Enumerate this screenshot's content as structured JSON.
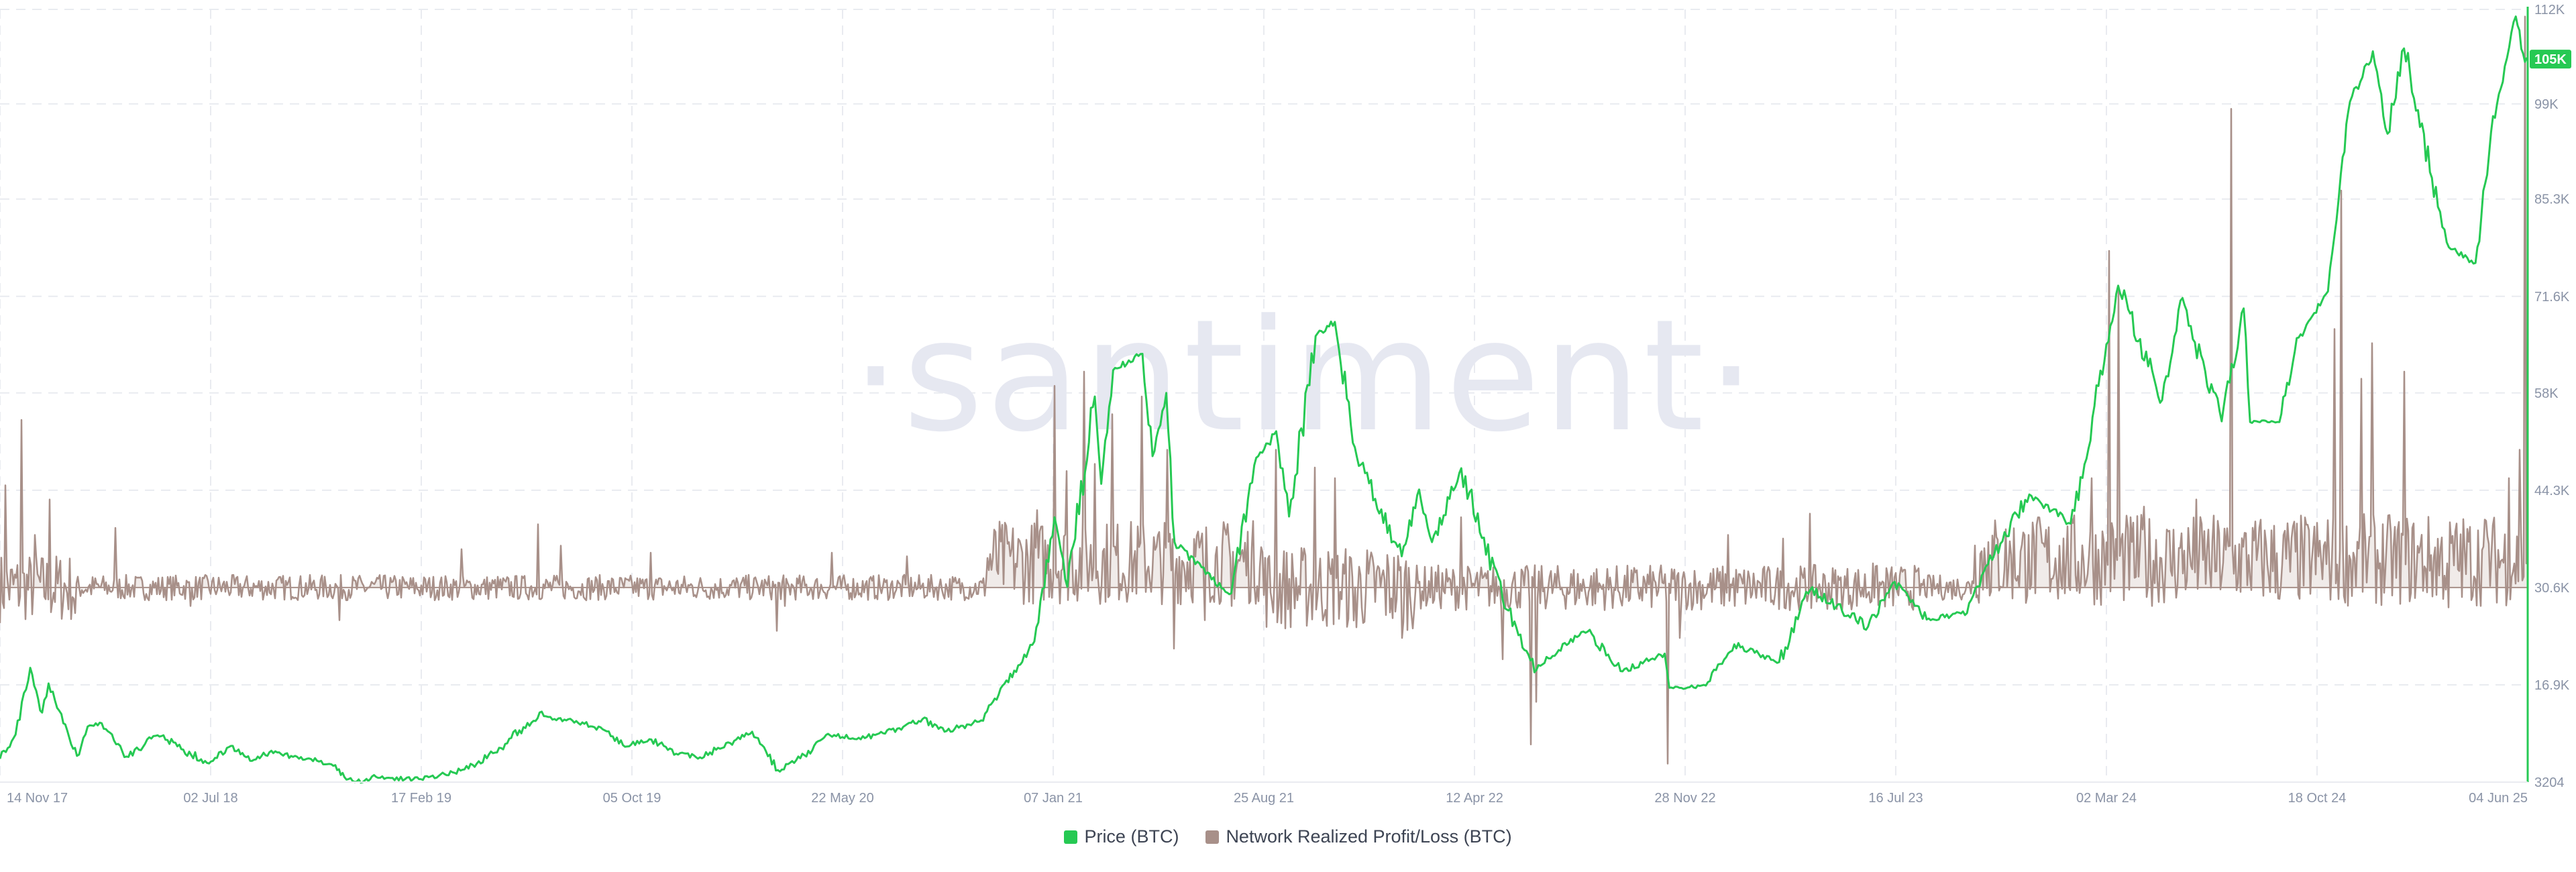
{
  "watermark": "·santiment·",
  "colors": {
    "price": "#26c953",
    "profit_loss": "#a89089",
    "profit_loss_fill": "#f0ebe9",
    "grid": "#e9ebf0",
    "axis_text": "#8a93a6",
    "badge_bg": "#26c953"
  },
  "chart_data": {
    "type": "line",
    "x_labels": [
      "14 Nov 17",
      "02 Jul 18",
      "17 Feb 19",
      "05 Oct 19",
      "22 May 20",
      "07 Jan 21",
      "25 Aug 21",
      "12 Apr 22",
      "28 Nov 22",
      "16 Jul 23",
      "02 Mar 24",
      "18 Oct 24",
      "04 Jun 25"
    ],
    "x_range": [
      "2017-11-14",
      "2025-06-04"
    ],
    "y_ticks": [
      "112K",
      "99K",
      "85.3K",
      "71.6K",
      "58K",
      "44.3K",
      "30.6K",
      "16.9K",
      "3204"
    ],
    "y_range": [
      3204,
      112000
    ],
    "y_tick_values": [
      112000,
      98700,
      85300,
      71600,
      58000,
      44300,
      30600,
      16900,
      3204
    ],
    "grid": true,
    "legend_position": "bottom-center",
    "current_value_badge": "105K",
    "series": [
      {
        "name": "Price (BTC)",
        "color": "#26c953",
        "points": [
          [
            "2017-11-14",
            6500
          ],
          [
            "2017-12-01",
            9900
          ],
          [
            "2017-12-17",
            19300
          ],
          [
            "2017-12-30",
            13000
          ],
          [
            "2018-01-06",
            17100
          ],
          [
            "2018-01-20",
            12800
          ],
          [
            "2018-02-06",
            6900
          ],
          [
            "2018-02-20",
            11200
          ],
          [
            "2018-03-05",
            11500
          ],
          [
            "2018-04-01",
            6800
          ],
          [
            "2018-05-05",
            9800
          ],
          [
            "2018-06-28",
            5900
          ],
          [
            "2018-07-24",
            8300
          ],
          [
            "2018-08-14",
            6200
          ],
          [
            "2018-09-04",
            7400
          ],
          [
            "2018-10-15",
            6500
          ],
          [
            "2018-11-15",
            5600
          ],
          [
            "2018-11-25",
            3900
          ],
          [
            "2018-12-15",
            3200
          ],
          [
            "2018-12-25",
            4000
          ],
          [
            "2019-02-08",
            3600
          ],
          [
            "2019-02-25",
            3900
          ],
          [
            "2019-04-05",
            5000
          ],
          [
            "2019-05-15",
            8000
          ],
          [
            "2019-06-26",
            13000
          ],
          [
            "2019-07-10",
            12000
          ],
          [
            "2019-08-05",
            11800
          ],
          [
            "2019-09-05",
            10500
          ],
          [
            "2019-09-25",
            8400
          ],
          [
            "2019-10-26",
            9200
          ],
          [
            "2019-11-22",
            7200
          ],
          [
            "2019-12-18",
            6700
          ],
          [
            "2020-01-20",
            8700
          ],
          [
            "2020-02-13",
            10300
          ],
          [
            "2020-03-12",
            4900
          ],
          [
            "2020-04-10",
            7000
          ],
          [
            "2020-05-08",
            9800
          ],
          [
            "2020-06-15",
            9400
          ],
          [
            "2020-07-27",
            11000
          ],
          [
            "2020-08-17",
            12100
          ],
          [
            "2020-09-10",
            10300
          ],
          [
            "2020-10-20",
            11900
          ],
          [
            "2020-11-08",
            15500
          ],
          [
            "2020-11-25",
            18900
          ],
          [
            "2020-12-17",
            23000
          ],
          [
            "2021-01-08",
            40500
          ],
          [
            "2021-01-22",
            30700
          ],
          [
            "2021-02-21",
            57500
          ],
          [
            "2021-02-28",
            45200
          ],
          [
            "2021-03-13",
            61200
          ],
          [
            "2021-04-14",
            63500
          ],
          [
            "2021-04-25",
            49100
          ],
          [
            "2021-05-10",
            58000
          ],
          [
            "2021-05-19",
            37000
          ],
          [
            "2021-06-22",
            32500
          ],
          [
            "2021-07-20",
            29800
          ],
          [
            "2021-08-14",
            47800
          ],
          [
            "2021-09-07",
            52600
          ],
          [
            "2021-09-21",
            40600
          ],
          [
            "2021-10-20",
            66000
          ],
          [
            "2021-11-10",
            68000
          ],
          [
            "2021-12-04",
            49000
          ],
          [
            "2022-01-22",
            35000
          ],
          [
            "2022-02-10",
            44400
          ],
          [
            "2022-02-24",
            37000
          ],
          [
            "2022-03-28",
            47400
          ],
          [
            "2022-05-12",
            29000
          ],
          [
            "2022-06-18",
            19000
          ],
          [
            "2022-07-30",
            23800
          ],
          [
            "2022-08-13",
            24400
          ],
          [
            "2022-09-20",
            18800
          ],
          [
            "2022-11-05",
            21300
          ],
          [
            "2022-11-10",
            16500
          ],
          [
            "2022-12-20",
            16800
          ],
          [
            "2023-01-20",
            22600
          ],
          [
            "2023-03-10",
            20100
          ],
          [
            "2023-04-13",
            30300
          ],
          [
            "2023-06-15",
            25100
          ],
          [
            "2023-07-14",
            31400
          ],
          [
            "2023-08-18",
            26100
          ],
          [
            "2023-10-01",
            27000
          ],
          [
            "2023-10-24",
            33900
          ],
          [
            "2023-12-08",
            43700
          ],
          [
            "2024-01-22",
            39600
          ],
          [
            "2024-02-28",
            62500
          ],
          [
            "2024-03-14",
            73100
          ],
          [
            "2024-05-01",
            57000
          ],
          [
            "2024-05-21",
            71000
          ],
          [
            "2024-07-05",
            54000
          ],
          [
            "2024-07-29",
            69900
          ],
          [
            "2024-08-05",
            53900
          ],
          [
            "2024-09-06",
            53900
          ],
          [
            "2024-09-27",
            65800
          ],
          [
            "2024-10-29",
            72300
          ],
          [
            "2024-11-12",
            88800
          ],
          [
            "2024-11-22",
            99000
          ],
          [
            "2024-12-17",
            106100
          ],
          [
            "2025-01-02",
            94500
          ],
          [
            "2025-01-20",
            106500
          ],
          [
            "2025-02-26",
            84200
          ],
          [
            "2025-03-10",
            78500
          ],
          [
            "2025-04-08",
            76300
          ],
          [
            "2025-04-25",
            94700
          ],
          [
            "2025-05-10",
            104000
          ],
          [
            "2025-05-22",
            111000
          ],
          [
            "2025-06-01",
            104600
          ],
          [
            "2025-06-04",
            105000
          ]
        ]
      },
      {
        "name": "Network Realized Profit/Loss (BTC)",
        "color": "#a89089",
        "baseline": 30600,
        "spikes": [
          [
            "2017-11-20",
            45000
          ],
          [
            "2017-12-08",
            54200
          ],
          [
            "2017-12-22",
            38000
          ],
          [
            "2018-01-08",
            43000
          ],
          [
            "2018-02-05",
            27000
          ],
          [
            "2018-03-20",
            39000
          ],
          [
            "2018-06-10",
            28000
          ],
          [
            "2018-11-20",
            26000
          ],
          [
            "2019-04-02",
            36000
          ],
          [
            "2019-06-25",
            39500
          ],
          [
            "2019-07-20",
            36500
          ],
          [
            "2019-10-25",
            35500
          ],
          [
            "2020-03-12",
            24500
          ],
          [
            "2020-03-20",
            28000
          ],
          [
            "2020-05-10",
            35500
          ],
          [
            "2020-08-01",
            35000
          ],
          [
            "2020-11-20",
            37000
          ],
          [
            "2020-12-20",
            41500
          ],
          [
            "2021-01-08",
            59000
          ],
          [
            "2021-01-22",
            47000
          ],
          [
            "2021-02-10",
            61000
          ],
          [
            "2021-02-22",
            48000
          ],
          [
            "2021-03-13",
            55000
          ],
          [
            "2021-04-14",
            57500
          ],
          [
            "2021-05-12",
            50000
          ],
          [
            "2021-05-19",
            22000
          ],
          [
            "2021-06-22",
            26000
          ],
          [
            "2021-07-20",
            28000
          ],
          [
            "2021-09-07",
            50000
          ],
          [
            "2021-10-20",
            47500
          ],
          [
            "2021-11-10",
            46000
          ],
          [
            "2021-12-04",
            25000
          ],
          [
            "2022-01-22",
            23500
          ],
          [
            "2022-03-28",
            40500
          ],
          [
            "2022-05-12",
            20500
          ],
          [
            "2022-06-13",
            8500
          ],
          [
            "2022-06-18",
            14500
          ],
          [
            "2022-11-09",
            5800
          ],
          [
            "2022-11-22",
            23500
          ],
          [
            "2023-01-14",
            38000
          ],
          [
            "2023-03-14",
            37500
          ],
          [
            "2023-04-13",
            41000
          ],
          [
            "2023-06-20",
            34000
          ],
          [
            "2023-10-24",
            37000
          ],
          [
            "2023-12-08",
            38000
          ],
          [
            "2024-01-11",
            36500
          ],
          [
            "2024-02-15",
            46000
          ],
          [
            "2024-03-05",
            78000
          ],
          [
            "2024-03-14",
            72500
          ],
          [
            "2024-04-12",
            42000
          ],
          [
            "2024-06-07",
            43000
          ],
          [
            "2024-07-15",
            98000
          ],
          [
            "2024-09-06",
            29000
          ],
          [
            "2024-11-06",
            67000
          ],
          [
            "2024-11-13",
            86500
          ],
          [
            "2024-12-05",
            60000
          ],
          [
            "2024-12-17",
            65000
          ],
          [
            "2025-01-20",
            61000
          ],
          [
            "2025-03-10",
            27800
          ],
          [
            "2025-04-20",
            40000
          ],
          [
            "2025-05-15",
            46000
          ],
          [
            "2025-05-26",
            50000
          ],
          [
            "2025-06-01",
            111000
          ],
          [
            "2025-06-04",
            36000
          ]
        ]
      }
    ]
  },
  "legend": {
    "price_label": "Price (BTC)",
    "profit_loss_label": "Network Realized Profit/Loss (BTC)"
  }
}
